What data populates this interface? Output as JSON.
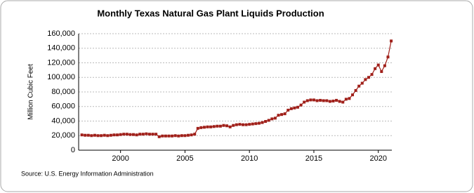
{
  "chart_data": {
    "type": "line",
    "title": "Monthly Texas Natural Gas Plant Liquids Production",
    "y_label": "Million Cubic Feet",
    "source": "Source: U.S. Energy Information Administration",
    "color": "#a0201a",
    "grid": true,
    "x": [
      1997,
      1997.25,
      1997.5,
      1997.75,
      1998,
      1998.25,
      1998.5,
      1998.75,
      1999,
      1999.25,
      1999.5,
      1999.75,
      2000,
      2000.25,
      2000.5,
      2000.75,
      2001,
      2001.25,
      2001.5,
      2001.75,
      2002,
      2002.25,
      2002.5,
      2002.75,
      2003,
      2003.25,
      2003.5,
      2003.75,
      2004,
      2004.25,
      2004.5,
      2004.75,
      2005,
      2005.25,
      2005.5,
      2005.75,
      2006,
      2006.25,
      2006.5,
      2006.75,
      2007,
      2007.25,
      2007.5,
      2007.75,
      2008,
      2008.25,
      2008.5,
      2008.75,
      2009,
      2009.25,
      2009.5,
      2009.75,
      2010,
      2010.25,
      2010.5,
      2010.75,
      2011,
      2011.25,
      2011.5,
      2011.75,
      2012,
      2012.25,
      2012.5,
      2012.75,
      2013,
      2013.25,
      2013.5,
      2013.75,
      2014,
      2014.25,
      2014.5,
      2014.75,
      2015,
      2015.25,
      2015.5,
      2015.75,
      2016,
      2016.25,
      2016.5,
      2016.75,
      2017,
      2017.25,
      2017.5,
      2017.75,
      2018,
      2018.25,
      2018.5,
      2018.75,
      2019,
      2019.25,
      2019.5,
      2019.75,
      2020,
      2020.25,
      2020.5,
      2020.75,
      2021
    ],
    "values": [
      21000,
      20500,
      20500,
      20000,
      20500,
      20000,
      20000,
      20500,
      20000,
      20500,
      21000,
      21000,
      21500,
      22000,
      22000,
      21500,
      21500,
      21000,
      22000,
      22000,
      22500,
      22000,
      22000,
      22000,
      18500,
      19500,
      19500,
      19500,
      19500,
      20000,
      19500,
      20000,
      20000,
      20500,
      21000,
      22000,
      30000,
      31000,
      31500,
      32000,
      32000,
      32500,
      33000,
      33000,
      34000,
      33500,
      32000,
      34000,
      35000,
      35500,
      35000,
      35000,
      35500,
      36000,
      36500,
      37000,
      38000,
      39500,
      41000,
      43000,
      44000,
      48000,
      49000,
      50000,
      55000,
      57000,
      58000,
      59000,
      62000,
      66000,
      68000,
      69000,
      69000,
      68000,
      68500,
      68000,
      68000,
      67000,
      67500,
      68500,
      67000,
      66000,
      70000,
      71000,
      76000,
      82000,
      88000,
      92000,
      97000,
      100000,
      104000,
      112000,
      117000,
      108000,
      116000,
      128000,
      150000
    ],
    "xlim": [
      1996.75,
      2021.05
    ],
    "xticks": [
      2000,
      2005,
      2010,
      2015,
      2020
    ],
    "ylim": [
      0,
      160000
    ],
    "yticks": [
      0,
      {
        "value": 20000,
        "label": "20,000"
      },
      {
        "value": 40000,
        "label": "40,000"
      },
      {
        "value": 60000,
        "label": "60,000"
      },
      {
        "value": 80000,
        "label": "80,000"
      },
      {
        "value": 100000,
        "label": "100,000"
      },
      {
        "value": 120000,
        "label": "120,000"
      },
      {
        "value": 140000,
        "label": "140,000"
      },
      {
        "value": 160000,
        "label": "160,000"
      }
    ]
  }
}
